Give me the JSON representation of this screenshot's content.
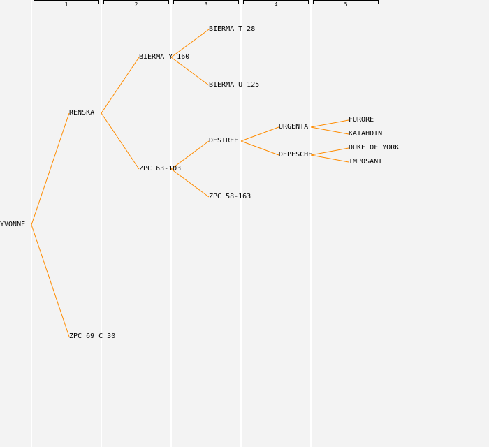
{
  "generations": [
    "1",
    "2",
    "3",
    "4",
    "5"
  ],
  "line_color": "#ff8c00",
  "tree": {
    "name": "YVONNE",
    "children": [
      {
        "name": "RENSKA",
        "children": [
          {
            "name": "BIERMA Y 160",
            "children": [
              {
                "name": "BIERMA T 28"
              },
              {
                "name": "BIERMA U 125"
              }
            ]
          },
          {
            "name": "ZPC 63-103",
            "children": [
              {
                "name": "DESIREE",
                "children": [
                  {
                    "name": "URGENTA",
                    "children": [
                      {
                        "name": "FURORE"
                      },
                      {
                        "name": "KATAHDIN"
                      }
                    ]
                  },
                  {
                    "name": "DEPESCHE",
                    "children": [
                      {
                        "name": "DUKE OF YORK"
                      },
                      {
                        "name": "IMPOSANT"
                      }
                    ]
                  }
                ]
              },
              {
                "name": "ZPC 58-163"
              }
            ]
          }
        ]
      },
      {
        "name": "ZPC 69 C 30"
      }
    ]
  }
}
